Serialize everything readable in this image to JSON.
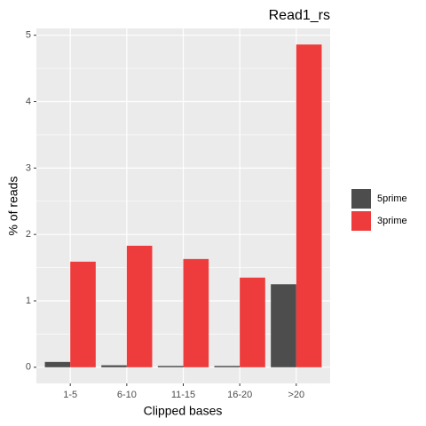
{
  "chart_data": {
    "type": "bar",
    "title": "Read1_rs",
    "x_label": "Clipped bases",
    "y_label": "% of reads",
    "categories": [
      "1-5",
      "6-10",
      "11-15",
      "16-20",
      ">20"
    ],
    "series": [
      {
        "name": "5prime",
        "color": "#4d4d4d",
        "values": [
          0.08,
          0.03,
          0.02,
          0.02,
          1.25
        ]
      },
      {
        "name": "3prime",
        "color": "#ee3b3b",
        "values": [
          1.59,
          1.83,
          1.63,
          1.35,
          4.86
        ]
      }
    ],
    "ylim": [
      -0.243,
      5.103
    ],
    "yticks": [
      0,
      1,
      2,
      3,
      4,
      5
    ],
    "grid": true,
    "legend": "right"
  }
}
